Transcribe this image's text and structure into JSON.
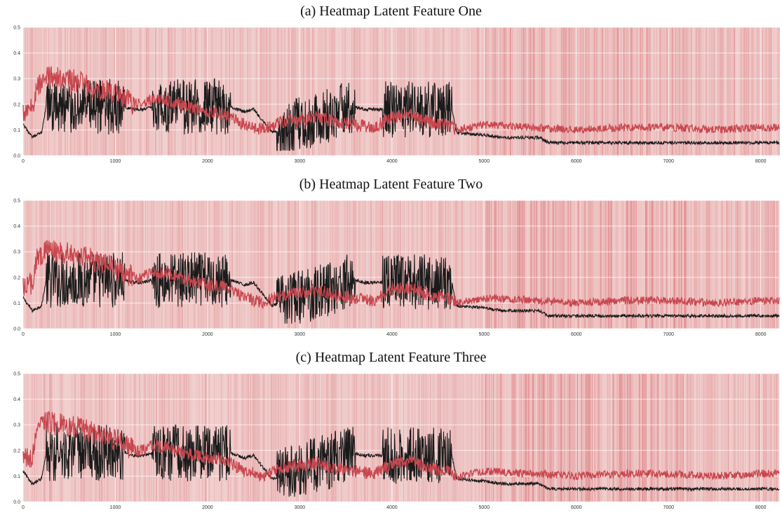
{
  "chart_data": [
    {
      "type": "line",
      "title": "(a) Heatmap Latent Feature One",
      "xlim": [
        0,
        8200
      ],
      "ylim": [
        0,
        0.5
      ],
      "x_ticks": [
        "0",
        "1000",
        "2000",
        "3000",
        "4000",
        "5000",
        "6000",
        "7000",
        "8000"
      ],
      "y_ticks": [
        "0.0",
        "0.1",
        "0.2",
        "0.3",
        "0.4",
        "0.5"
      ],
      "grid": true,
      "background": "heatmap stripes (red, varying intensity)",
      "series": [
        {
          "color": "#c8474f",
          "x": [
            0,
            100,
            150,
            250,
            400,
            600,
            800,
            1000,
            1100,
            1200,
            1300,
            1400,
            1600,
            1800,
            2000,
            2200,
            2400,
            2600,
            2800,
            3000,
            3200,
            3400,
            3600,
            3800,
            4000,
            4200,
            4400,
            4600,
            4700,
            5000,
            5500,
            6000,
            6500,
            7000,
            7500,
            8000,
            8200
          ],
          "y": [
            0.16,
            0.18,
            0.27,
            0.31,
            0.3,
            0.29,
            0.26,
            0.24,
            0.22,
            0.2,
            0.2,
            0.22,
            0.21,
            0.19,
            0.17,
            0.16,
            0.12,
            0.1,
            0.13,
            0.14,
            0.15,
            0.13,
            0.12,
            0.11,
            0.15,
            0.16,
            0.13,
            0.12,
            0.1,
            0.12,
            0.11,
            0.1,
            0.11,
            0.11,
            0.1,
            0.11,
            0.11
          ]
        },
        {
          "color": "#1a1a1a",
          "x": [
            0,
            100,
            200,
            250,
            1100,
            1200,
            1300,
            1400,
            2250,
            2400,
            2500,
            2700,
            3600,
            3700,
            3900,
            4650,
            4700,
            5000,
            5200,
            5600,
            5700,
            6000,
            7000,
            8000,
            8200
          ],
          "y": [
            0.12,
            0.07,
            0.09,
            0.19,
            0.19,
            0.18,
            0.18,
            0.19,
            0.19,
            0.17,
            0.18,
            0.09,
            0.19,
            0.18,
            0.18,
            0.18,
            0.09,
            0.08,
            0.07,
            0.07,
            0.05,
            0.05,
            0.05,
            0.05,
            0.05
          ]
        }
      ]
    },
    {
      "type": "line",
      "title": "(b) Heatmap Latent Feature Two",
      "xlim": [
        0,
        8200
      ],
      "ylim": [
        0,
        0.5
      ],
      "x_ticks": [
        "0",
        "1000",
        "2000",
        "3000",
        "4000",
        "5000",
        "6000",
        "7000",
        "8000"
      ],
      "y_ticks": [
        "0.0",
        "0.1",
        "0.2",
        "0.3",
        "0.4",
        "0.5"
      ],
      "grid": true,
      "background": "heatmap stripes (red, varying intensity)",
      "series": [
        {
          "color": "#c8474f",
          "x": [
            0,
            100,
            150,
            250,
            400,
            600,
            800,
            1000,
            1100,
            1200,
            1300,
            1400,
            1600,
            1800,
            2000,
            2200,
            2400,
            2600,
            2800,
            3000,
            3200,
            3400,
            3600,
            3800,
            4000,
            4200,
            4400,
            4600,
            4700,
            5000,
            5500,
            6000,
            6500,
            7000,
            7500,
            8000,
            8200
          ],
          "y": [
            0.16,
            0.18,
            0.27,
            0.31,
            0.3,
            0.29,
            0.26,
            0.24,
            0.22,
            0.2,
            0.2,
            0.22,
            0.21,
            0.19,
            0.17,
            0.16,
            0.12,
            0.1,
            0.13,
            0.14,
            0.15,
            0.13,
            0.12,
            0.11,
            0.15,
            0.16,
            0.13,
            0.12,
            0.1,
            0.12,
            0.11,
            0.1,
            0.11,
            0.11,
            0.1,
            0.11,
            0.11
          ]
        },
        {
          "color": "#1a1a1a",
          "x": [
            0,
            100,
            200,
            250,
            1100,
            1200,
            1300,
            1400,
            2250,
            2400,
            2500,
            2700,
            3600,
            3700,
            3900,
            4650,
            4700,
            5000,
            5200,
            5600,
            5700,
            6000,
            7000,
            8000,
            8200
          ],
          "y": [
            0.12,
            0.07,
            0.09,
            0.19,
            0.19,
            0.18,
            0.18,
            0.19,
            0.19,
            0.17,
            0.18,
            0.09,
            0.19,
            0.18,
            0.18,
            0.18,
            0.09,
            0.08,
            0.07,
            0.07,
            0.05,
            0.05,
            0.05,
            0.05,
            0.05
          ]
        }
      ]
    },
    {
      "type": "line",
      "title": "(c) Heatmap Latent Feature Three",
      "xlim": [
        0,
        8200
      ],
      "ylim": [
        0,
        0.5
      ],
      "x_ticks": [
        "0",
        "1000",
        "2000",
        "3000",
        "4000",
        "5000",
        "6000",
        "7000",
        "8000"
      ],
      "y_ticks": [
        "0.0",
        "0.1",
        "0.2",
        "0.3",
        "0.4",
        "0.5"
      ],
      "grid": true,
      "background": "heatmap stripes (red, varying intensity)",
      "series": [
        {
          "color": "#c8474f",
          "x": [
            0,
            100,
            150,
            250,
            400,
            600,
            800,
            1000,
            1100,
            1200,
            1300,
            1400,
            1600,
            1800,
            2000,
            2200,
            2400,
            2600,
            2800,
            3000,
            3200,
            3400,
            3600,
            3800,
            4000,
            4200,
            4400,
            4600,
            4700,
            5000,
            5500,
            6000,
            6500,
            7000,
            7500,
            8000,
            8200
          ],
          "y": [
            0.16,
            0.18,
            0.27,
            0.31,
            0.3,
            0.29,
            0.26,
            0.24,
            0.22,
            0.2,
            0.2,
            0.22,
            0.21,
            0.19,
            0.17,
            0.16,
            0.12,
            0.1,
            0.13,
            0.14,
            0.15,
            0.13,
            0.12,
            0.11,
            0.15,
            0.16,
            0.13,
            0.12,
            0.1,
            0.12,
            0.11,
            0.1,
            0.11,
            0.11,
            0.1,
            0.11,
            0.11
          ]
        },
        {
          "color": "#1a1a1a",
          "x": [
            0,
            100,
            200,
            250,
            1100,
            1200,
            1300,
            1400,
            2250,
            2400,
            2500,
            2700,
            3600,
            3700,
            3900,
            4650,
            4700,
            5000,
            5200,
            5600,
            5700,
            6000,
            7000,
            8000,
            8200
          ],
          "y": [
            0.12,
            0.07,
            0.09,
            0.19,
            0.19,
            0.18,
            0.18,
            0.19,
            0.19,
            0.17,
            0.18,
            0.09,
            0.19,
            0.18,
            0.18,
            0.18,
            0.09,
            0.08,
            0.07,
            0.07,
            0.05,
            0.05,
            0.05,
            0.05,
            0.05
          ]
        }
      ]
    }
  ]
}
